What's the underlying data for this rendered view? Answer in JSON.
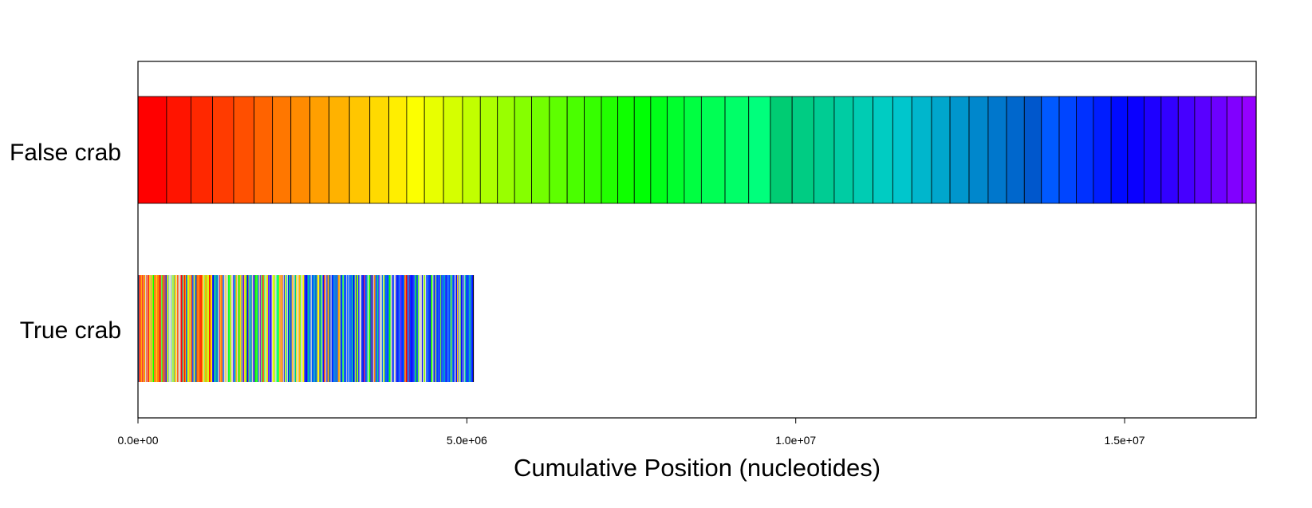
{
  "chart_data": {
    "type": "bar",
    "title": "",
    "xlabel": "Cumulative Position (nucleotides)",
    "ylabel": "",
    "xlim": [
      0,
      17000000
    ],
    "x_ticks": [
      {
        "value": 0,
        "label": "0.0e+00"
      },
      {
        "value": 5000000,
        "label": "5.0e+06"
      },
      {
        "value": 10000000,
        "label": "1.0e+07"
      },
      {
        "value": 15000000,
        "label": "1.5e+07"
      }
    ],
    "grid": false,
    "legend": "none",
    "rows": [
      {
        "name": "False crab",
        "segment_boundaries": [
          0,
          435000,
          805000,
          1135000,
          1455000,
          1765000,
          2045000,
          2325000,
          2615000,
          2905000,
          3215000,
          3525000,
          3815000,
          4085000,
          4355000,
          4645000,
          4935000,
          5205000,
          5465000,
          5725000,
          5985000,
          6255000,
          6525000,
          6785000,
          7045000,
          7295000,
          7545000,
          7795000,
          8045000,
          8305000,
          8565000,
          8925000,
          9285000,
          9615000,
          9945000,
          10275000,
          10585000,
          10875000,
          11175000,
          11475000,
          11765000,
          12065000,
          12345000,
          12635000,
          12925000,
          13205000,
          13475000,
          13735000,
          14005000,
          14265000,
          14525000,
          14795000,
          15045000,
          15295000,
          15555000,
          15815000,
          16065000,
          16315000,
          16555000,
          16785000,
          17000000
        ],
        "color_scale": "rainbow red-to-violet"
      },
      {
        "name": "True crab",
        "extent": [
          0,
          5100000
        ],
        "segment_count": 340,
        "color_scale": "mixed rainbow segments (scrambled order)"
      }
    ]
  }
}
